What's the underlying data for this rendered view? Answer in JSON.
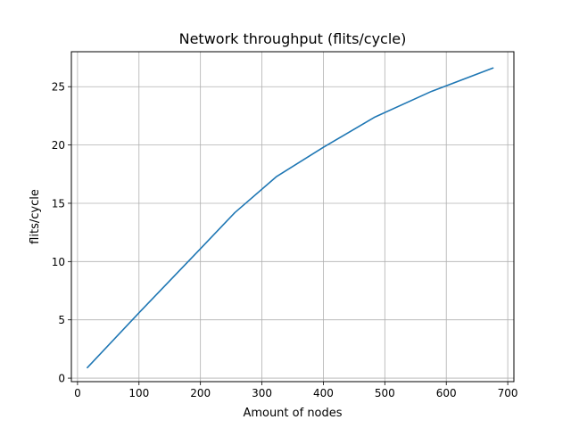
{
  "chart_data": {
    "type": "line",
    "title": "Network throughput (flits/cycle)",
    "xlabel": "Amount of nodes",
    "ylabel": "flits/cycle",
    "xlim": [
      -10,
      710
    ],
    "ylim": [
      -0.3,
      28.0
    ],
    "xticks": [
      0,
      100,
      200,
      300,
      400,
      500,
      600,
      700
    ],
    "yticks": [
      0,
      5,
      10,
      15,
      20,
      25
    ],
    "grid": true,
    "legend": "none",
    "series": [
      {
        "color": "#1f77b4",
        "x": [
          16,
          100,
          200,
          256,
          324,
          400,
          484,
          576,
          676
        ],
        "y": [
          0.9,
          5.6,
          11.1,
          14.2,
          17.3,
          19.8,
          22.4,
          24.6,
          26.6
        ]
      }
    ]
  }
}
